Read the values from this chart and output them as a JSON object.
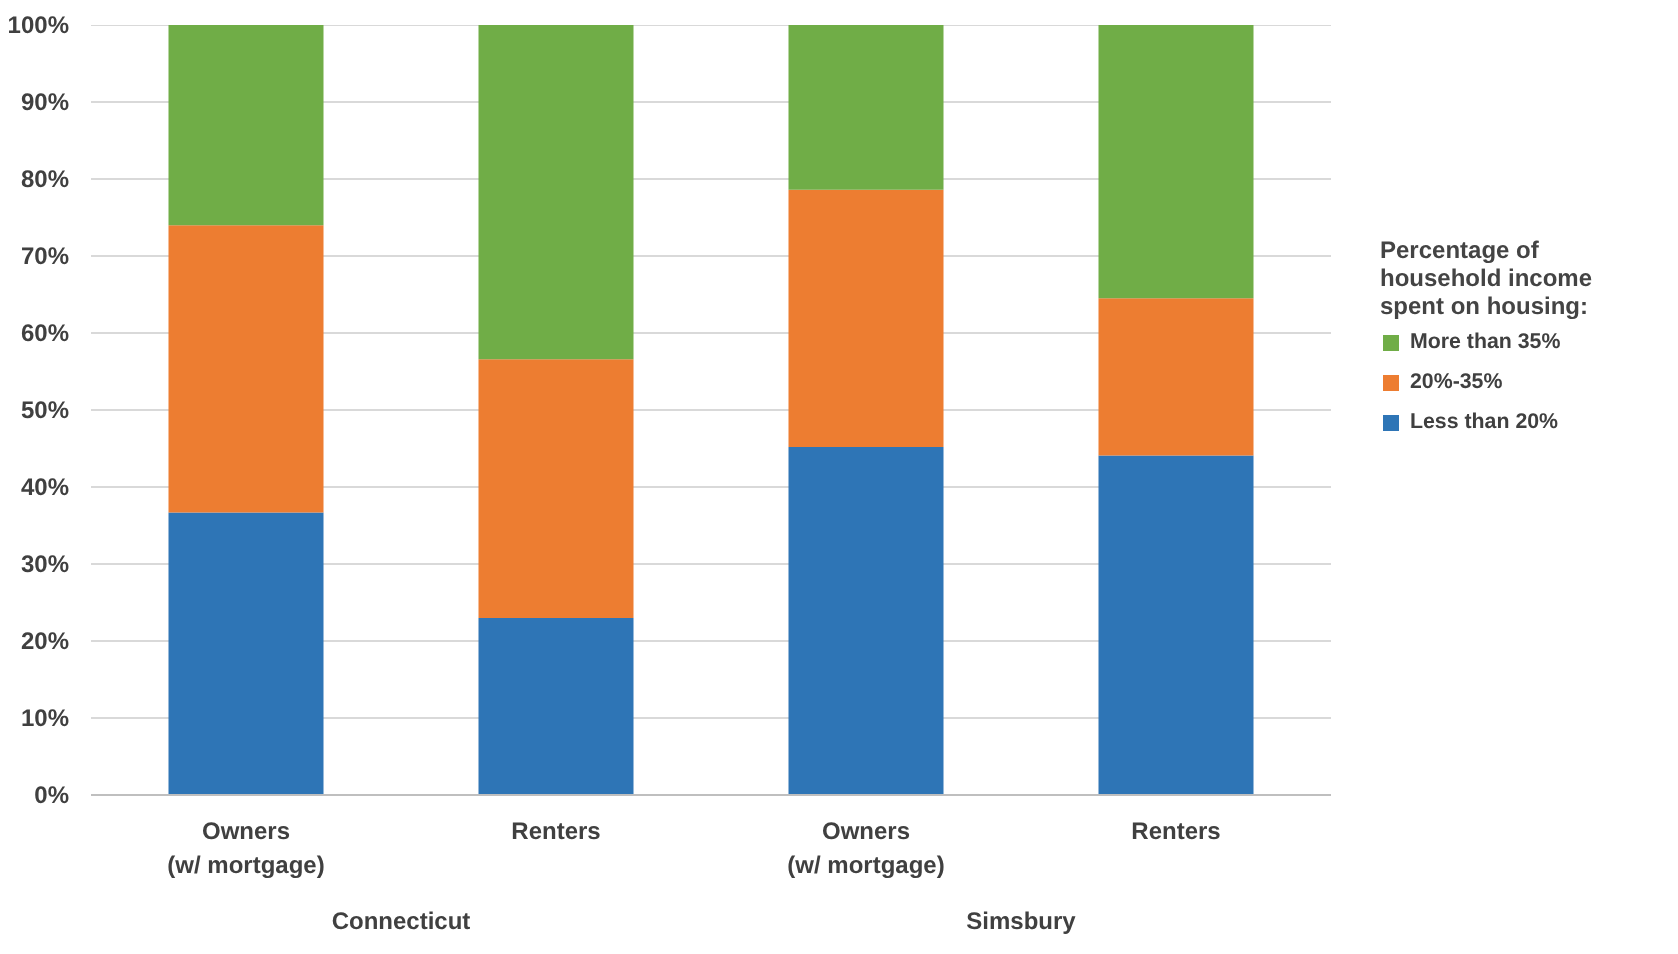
{
  "chart_data": {
    "type": "bar",
    "stacked": true,
    "categories": [
      "Owners\n(w/ mortgage)",
      "Renters",
      "Owners\n(w/ mortgage)",
      "Renters"
    ],
    "series": [
      {
        "name": "Less than 20%",
        "color": "#2e75b6",
        "values": [
          36.7,
          23.0,
          45.2,
          44.1
        ]
      },
      {
        "name": "20%-35%",
        "color": "#ed7d31",
        "values": [
          37.3,
          33.6,
          33.4,
          20.4
        ]
      },
      {
        "name": "More than 35%",
        "color": "#70ad47",
        "values": [
          26.0,
          43.4,
          21.4,
          35.5
        ]
      }
    ],
    "ylim": [
      0,
      100
    ],
    "yticks": [
      {
        "value": 0,
        "label": "0%"
      },
      {
        "value": 10,
        "label": "10%"
      },
      {
        "value": 20,
        "label": "20%"
      },
      {
        "value": 30,
        "label": "30%"
      },
      {
        "value": 40,
        "label": "40%"
      },
      {
        "value": 50,
        "label": "50%"
      },
      {
        "value": 60,
        "label": "60%"
      },
      {
        "value": 70,
        "label": "70%"
      },
      {
        "value": 80,
        "label": "80%"
      },
      {
        "value": 90,
        "label": "90%"
      },
      {
        "value": 100,
        "label": "100%"
      }
    ],
    "annotations": [
      "Connecticut",
      "Simsbury"
    ],
    "legend_title": "Percentage of household income spent on housing:",
    "legend": "right",
    "grid": "y"
  }
}
